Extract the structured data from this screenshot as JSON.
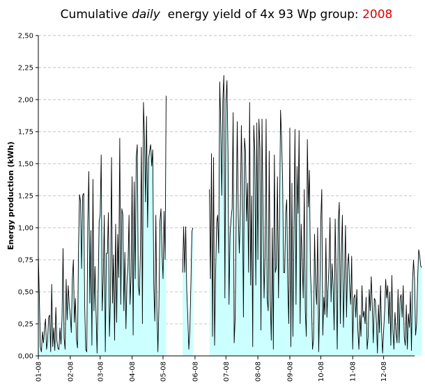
{
  "chart_data": {
    "type": "area",
    "title": {
      "prefix": "Cumulative ",
      "emphasis": "daily",
      "middle": "  energy yield of 4x 93 Wp group: ",
      "year": "2008"
    },
    "ylabel": "Energy production (kWh)",
    "xlabel": "",
    "ylim": [
      0,
      2.5
    ],
    "yticks": [
      "0,00",
      "0,25",
      "0,50",
      "0,75",
      "1,00",
      "1,25",
      "1,50",
      "1,75",
      "2,00",
      "2,25",
      "2,50"
    ],
    "grid": true,
    "legend": "none",
    "x_domain_days": [
      1,
      366
    ],
    "month_ticks": [
      {
        "label": "01-08",
        "day": 1
      },
      {
        "label": "02-08",
        "day": 32
      },
      {
        "label": "03-08",
        "day": 61
      },
      {
        "label": "04-08",
        "day": 92
      },
      {
        "label": "05-08",
        "day": 122
      },
      {
        "label": "06-08",
        "day": 153
      },
      {
        "label": "07-08",
        "day": 183
      },
      {
        "label": "08-08",
        "day": 214
      },
      {
        "label": "09-08",
        "day": 245
      },
      {
        "label": "10-08",
        "day": 275
      },
      {
        "label": "11-08",
        "day": 306
      },
      {
        "label": "12-08",
        "day": 336
      }
    ],
    "gaps_days": [
      [
        125,
        140
      ],
      [
        161,
        166
      ]
    ],
    "series": [
      {
        "fill": "#ccffff",
        "line": "#000000",
        "segments": [
          {
            "start_day": 1,
            "values": [
              0.8,
              0.45,
              0.07,
              0.03,
              0.19,
              0.1,
              0.21,
              0.29,
              0.05,
              0.12,
              0.3,
              0.32,
              0.03,
              0.56,
              0.07,
              0.22,
              0.04,
              0.38,
              0.12,
              0.06,
              0.05,
              0.22,
              0.09,
              0.3,
              0.84,
              0.14,
              0.05,
              0.6,
              0.28,
              0.55,
              0.4,
              0.32,
              0.18,
              0.6,
              0.75,
              0.26,
              0.45,
              0.13,
              0.06,
              0.85,
              1.26,
              1.2,
              0.68,
              1.25,
              1.27,
              0.38,
              0.05,
              0.03,
              1.04,
              1.44,
              0.41,
              0.98,
              0.08,
              1.38,
              0.35,
              0.7,
              0.34,
              0.02,
              0.52,
              1.05,
              1.1,
              1.57,
              0.35,
              0.6,
              1.1,
              0.03,
              0.8,
              0.8,
              1.12,
              0.15,
              0.45,
              1.55,
              0.41,
              0.79,
              0.12,
              1.03,
              0.26,
              0.95,
              0.61,
              1.7,
              0.4,
              1.15,
              1.1,
              0.35,
              0.81,
              0.21,
              0.58,
              0.7,
              1.1,
              0.4,
              0.63,
              1.4,
              0.16,
              1.36,
              0.6,
              1.55,
              1.65,
              0.55,
              0.47,
              0.8,
              1.63,
              0.25,
              1.98,
              1.7,
              1.2,
              1.87,
              1.0,
              1.54,
              1.6,
              1.65,
              1.48,
              1.61,
              0.55,
              0.27,
              1.1,
              0.38,
              0.03,
              0.4,
              1.05,
              1.15,
              0.8,
              0.6,
              1.13,
              0.75,
              2.03
            ]
          },
          {
            "start_day": 141,
            "values": [
              0.65,
              1.01,
              0.65,
              1.01,
              0.51,
              0.31,
              0.05,
              0.2,
              0.55,
              0.97,
              1.0
            ]
          },
          {
            "start_day": 167,
            "values": [
              1.3,
              0.6,
              1.58,
              0.15,
              1.55,
              0.08,
              0.65,
              1.04,
              1.1,
              0.8,
              2.14,
              1.8,
              1.25,
              2.0,
              2.19,
              0.45,
              1.98,
              2.15,
              1.6,
              0.4,
              0.95,
              1.07,
              1.15,
              1.9,
              0.1,
              0.3,
              1.12,
              1.83,
              1.1,
              0.8,
              1.15,
              1.8,
              1.3,
              0.3,
              1.7,
              1.6,
              1.05,
              1.35,
              0.65,
              1.98,
              0.55,
              1.25,
              0.07,
              1.8,
              1.6,
              0.55,
              1.82,
              0.75,
              1.85,
              1.62,
              0.2,
              1.85,
              1.12,
              0.45,
              0.8,
              1.85,
              0.45,
              0.35,
              1.6,
              0.45,
              0.12,
              1.0,
              0.05,
              1.57,
              0.65,
              0.7,
              1.4,
              0.45,
              1.05,
              1.92,
              1.7,
              1.37,
              0.65,
              0.65,
              1.12,
              1.22,
              0.55,
              0.25,
              1.78,
              0.07,
              1.35,
              0.15,
              0.98,
              1.77,
              0.4,
              1.48,
              1.11,
              1.76,
              0.25,
              1.03,
              0.75,
              0.45,
              1.3,
              0.35,
              0.15,
              1.69,
              1.16,
              1.45,
              0.66,
              0.45,
              0.05,
              0.13,
              0.95,
              0.55,
              0.4,
              1.0,
              0.03,
              0.44,
              1.05,
              1.3,
              0.16,
              0.46,
              0.32,
              0.92,
              0.3,
              0.52,
              0.7,
              1.08,
              0.42,
              0.72,
              0.55,
              0.2,
              1.07,
              0.6,
              0.05,
              1.05,
              1.2,
              0.25,
              0.8,
              1.1,
              0.22,
              0.6,
              1.02,
              0.3,
              0.7,
              0.8,
              0.55,
              0.4,
              0.78,
              0.05,
              0.45,
              0.48,
              0.3,
              0.52,
              0.2,
              0.05,
              0.32,
              0.15,
              0.55,
              0.3,
              0.35,
              0.25,
              0.46,
              0.05,
              0.15,
              0.52,
              0.35,
              0.62,
              0.38,
              0.1,
              0.45,
              0.43,
              0.26,
              0.02,
              0.4,
              0.18,
              0.55,
              0.2,
              0.02,
              0.2,
              0.35,
              0.6,
              0.45,
              0.55,
              0.25,
              0.5,
              0.08,
              0.63,
              0.2,
              0.05,
              0.34,
              0.2,
              0.1,
              0.52,
              0.1,
              0.45,
              0.48,
              0.3,
              0.55,
              0.15,
              0.08,
              0.4,
              0.05,
              0.33,
              0.22,
              0.5,
              0.04,
              0.58,
              0.75,
              0.6,
              0.16,
              0.25,
              0.6,
              0.83,
              0.78,
              0.7,
              0.69
            ]
          }
        ]
      }
    ]
  }
}
